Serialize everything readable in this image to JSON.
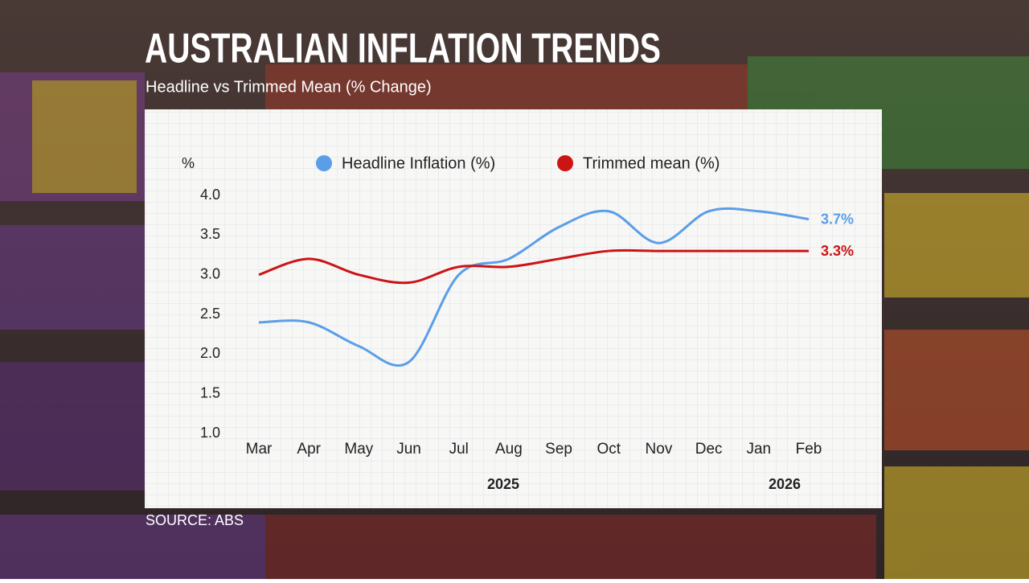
{
  "chart_data": {
    "type": "line",
    "title": "AUSTRALIAN INFLATION TRENDS",
    "subtitle": "Headline vs Trimmed Mean (% Change)",
    "ylabel": "%",
    "source": "SOURCE: ABS",
    "categories": [
      "Mar",
      "Apr",
      "May",
      "Jun",
      "Jul",
      "Aug",
      "Sep",
      "Oct",
      "Nov",
      "Dec",
      "Jan",
      "Feb"
    ],
    "x_group_labels": [
      "2025",
      "2026"
    ],
    "series": [
      {
        "name": "Headline Inflation (%)",
        "color": "#5b9ee8",
        "values": [
          2.4,
          2.4,
          2.1,
          1.9,
          3.0,
          3.2,
          3.6,
          3.8,
          3.4,
          3.8,
          3.8,
          3.7
        ],
        "value_labels": [
          null,
          null,
          null,
          null,
          null,
          null,
          null,
          null,
          null,
          null,
          null,
          "3.7%"
        ]
      },
      {
        "name": "Trimmed mean (%)",
        "color": "#cc1414",
        "values": [
          3.0,
          3.2,
          3.0,
          2.9,
          3.1,
          3.1,
          3.2,
          3.3,
          3.3,
          3.3,
          3.3,
          3.3
        ],
        "value_labels": [
          null,
          null,
          null,
          null,
          null,
          null,
          null,
          null,
          null,
          null,
          null,
          "3.3%"
        ]
      }
    ],
    "ylim": [
      1.0,
      4.0
    ],
    "yticks": [
      {
        "value": 1,
        "label": "1.0"
      },
      {
        "value": 1.5,
        "label": "1.5"
      },
      {
        "value": 2,
        "label": "2.0"
      },
      {
        "value": 2.5,
        "label": "2.5"
      },
      {
        "value": 3,
        "label": "3.0"
      },
      {
        "value": 3.5,
        "label": "3.5"
      },
      {
        "value": 4,
        "label": "4.0"
      }
    ],
    "grid": false,
    "legend": "top"
  }
}
